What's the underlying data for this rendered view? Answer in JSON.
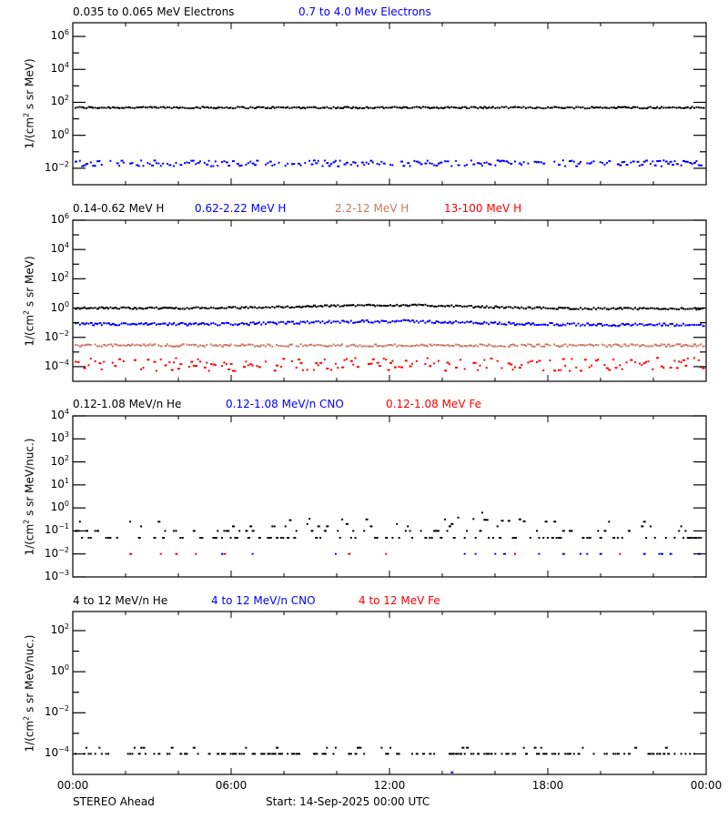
{
  "chart_data": {
    "type": "scatter",
    "spacecraft": "STEREO Ahead",
    "start_label": "Start: 14-Sep-2025 00:00 UTC",
    "x_ticks": [
      "00:00",
      "06:00",
      "12:00",
      "18:00",
      "00:00"
    ],
    "x_range_hours": [
      0,
      24
    ],
    "panels": [
      {
        "id": "electrons",
        "ylabel": "1/(cm² s sr MeV)",
        "ylabel_parts": [
          "1/(cm",
          "2",
          " s sr MeV)"
        ],
        "y_log_range": [
          -3,
          6.83
        ],
        "y_ticks": [
          {
            "exp": 6,
            "label": "10",
            "sup": "6"
          },
          {
            "exp": 4,
            "label": "10",
            "sup": "4"
          },
          {
            "exp": 2,
            "label": "10",
            "sup": "2"
          },
          {
            "exp": 0,
            "label": "10",
            "sup": "0"
          },
          {
            "exp": -2,
            "label": "10",
            "sup": "-2"
          }
        ],
        "minor_ticks": [
          5,
          3,
          1,
          -1
        ],
        "legend": [
          {
            "label": "0.035 to 0.065 MeV Electrons",
            "color": "#000000"
          },
          {
            "label": "0.7 to 4.0 Mev Electrons",
            "color": "#0000ff"
          }
        ],
        "series": [
          {
            "name": "0.035 to 0.065 MeV Electrons",
            "color": "#000000",
            "base_log": 1.68,
            "jitter": 0.05,
            "density": 1.0,
            "trend": "flat"
          },
          {
            "name": "0.7 to 4.0 Mev Electrons",
            "color": "#0000ff",
            "base_log": -1.7,
            "jitter": 0.18,
            "density": 0.75,
            "trend": "flat"
          }
        ]
      },
      {
        "id": "protons",
        "ylabel": "1/(cm² s sr MeV)",
        "ylabel_parts": [
          "1/(cm",
          "2",
          " s sr MeV)"
        ],
        "y_log_range": [
          -5,
          6
        ],
        "y_ticks": [
          {
            "exp": 6,
            "label": "10",
            "sup": "6"
          },
          {
            "exp": 4,
            "label": "10",
            "sup": "4"
          },
          {
            "exp": 2,
            "label": "10",
            "sup": "2"
          },
          {
            "exp": 0,
            "label": "10",
            "sup": "0"
          },
          {
            "exp": -2,
            "label": "10",
            "sup": "-2"
          },
          {
            "exp": -4,
            "label": "10",
            "sup": "-4"
          }
        ],
        "minor_ticks": [
          5,
          3,
          1,
          -1,
          -3
        ],
        "legend": [
          {
            "label": "0.14-0.62 MeV H",
            "color": "#000000"
          },
          {
            "label": "0.62-2.22 MeV H",
            "color": "#0000ff"
          },
          {
            "label": "2.2-12 MeV H",
            "color": "#c87860"
          },
          {
            "label": "13-100 MeV H",
            "color": "#ff0000"
          }
        ],
        "series": [
          {
            "name": "0.14-0.62 MeV H",
            "color": "#000000",
            "base_log": 0.0,
            "jitter": 0.06,
            "density": 1.0,
            "trend": "bump"
          },
          {
            "name": "0.62-2.22 MeV H",
            "color": "#0000ff",
            "base_log": -1.1,
            "jitter": 0.09,
            "density": 1.0,
            "trend": "bump"
          },
          {
            "name": "2.2-12 MeV H",
            "color": "#c87860",
            "base_log": -2.55,
            "jitter": 0.08,
            "density": 0.95,
            "trend": "flat"
          },
          {
            "name": "13-100 MeV H",
            "color": "#ff0000",
            "base_log": -3.85,
            "jitter": 0.45,
            "density": 0.6,
            "trend": "flat"
          }
        ]
      },
      {
        "id": "heavy-low",
        "ylabel": "1/(cm² s sr MeV/nuc.)",
        "ylabel_parts": [
          "1/(cm",
          "2",
          " s sr MeV/nuc.)"
        ],
        "y_log_range": [
          -3,
          4
        ],
        "y_ticks": [
          {
            "exp": 4,
            "label": "10",
            "sup": "4"
          },
          {
            "exp": 3,
            "label": "10",
            "sup": "3"
          },
          {
            "exp": 2,
            "label": "10",
            "sup": "2"
          },
          {
            "exp": 1,
            "label": "10",
            "sup": "1"
          },
          {
            "exp": 0,
            "label": "10",
            "sup": "0"
          },
          {
            "exp": -1,
            "label": "10",
            "sup": "-1"
          },
          {
            "exp": -2,
            "label": "10",
            "sup": "-2"
          },
          {
            "exp": -3,
            "label": "10",
            "sup": "-3"
          }
        ],
        "minor_ticks": [],
        "legend": [
          {
            "label": "0.12-1.08 MeV/n He",
            "color": "#000000"
          },
          {
            "label": "0.12-1.08 MeV/n CNO",
            "color": "#0000ff"
          },
          {
            "label": "0.12-1.08 MeV Fe",
            "color": "#ff0000"
          }
        ],
        "series": [
          {
            "name": "0.12-1.08 MeV/n He",
            "color": "#000000",
            "base_log": -1.3,
            "jitter": 0.45,
            "density": 0.55,
            "trend": "quantized_bump"
          },
          {
            "name": "0.12-1.08 MeV/n CNO",
            "color": "#0000ff",
            "base_log": -2.0,
            "jitter": 0.0,
            "density": 0.06,
            "trend": "flat"
          },
          {
            "name": "0.12-1.08 MeV Fe",
            "color": "#ff0000",
            "base_log": -2.0,
            "jitter": 0.0,
            "density": 0.04,
            "trend": "flat"
          }
        ]
      },
      {
        "id": "heavy-high",
        "ylabel": "1/(cm² s sr MeV/nuc.)",
        "ylabel_parts": [
          "1/(cm",
          "2",
          " s sr MeV/nuc.)"
        ],
        "y_log_range": [
          -5,
          2.93
        ],
        "y_ticks": [
          {
            "exp": 2,
            "label": "10",
            "sup": "2"
          },
          {
            "exp": 0,
            "label": "10",
            "sup": "0"
          },
          {
            "exp": -2,
            "label": "10",
            "sup": "-2"
          },
          {
            "exp": -4,
            "label": "10",
            "sup": "-4"
          }
        ],
        "minor_ticks": [
          1,
          -1,
          -3
        ],
        "legend": [
          {
            "label": "4 to 12 MeV/n He",
            "color": "#000000"
          },
          {
            "label": "4 to 12 MeV/n CNO",
            "color": "#0000ff"
          },
          {
            "label": "4 to 12 MeV Fe",
            "color": "#ff0000"
          }
        ],
        "series": [
          {
            "name": "4 to 12 MeV/n He",
            "color": "#000000",
            "base_log": -4.0,
            "jitter": 0.15,
            "density": 0.45,
            "trend": "quantized"
          },
          {
            "name": "4 to 12 MeV/n CNO",
            "color": "#0000ff",
            "base_log": -4.9,
            "jitter": 0.0,
            "density": 0.01,
            "trend": "flat"
          },
          {
            "name": "4 to 12 MeV Fe",
            "color": "#ff0000",
            "base_log": -5.5,
            "jitter": 0.0,
            "density": 0.0,
            "trend": "flat"
          }
        ]
      }
    ]
  }
}
